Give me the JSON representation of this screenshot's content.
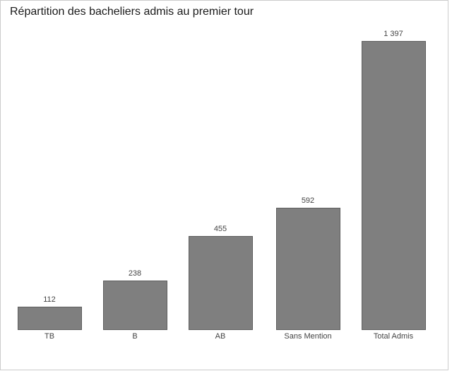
{
  "frame": {
    "border_color": "#cccccc",
    "background": "#ffffff"
  },
  "chart_data": {
    "type": "bar",
    "title": "Répartition des bacheliers admis au premier tour",
    "categories": [
      "TB",
      "B",
      "AB",
      "Sans Mention",
      "Total Admis"
    ],
    "values": [
      112,
      238,
      455,
      592,
      1397
    ],
    "value_labels": [
      "112",
      "238",
      "455",
      "592",
      "1 397"
    ],
    "xlabel": "",
    "ylabel": "",
    "ylim": [
      0,
      1397
    ],
    "grid": false,
    "legend": "none",
    "bar_color": "#7f7f7f",
    "bar_border_color": "#5e5e5e",
    "label_color": "#444444",
    "title_color": "#1a1a1a"
  }
}
